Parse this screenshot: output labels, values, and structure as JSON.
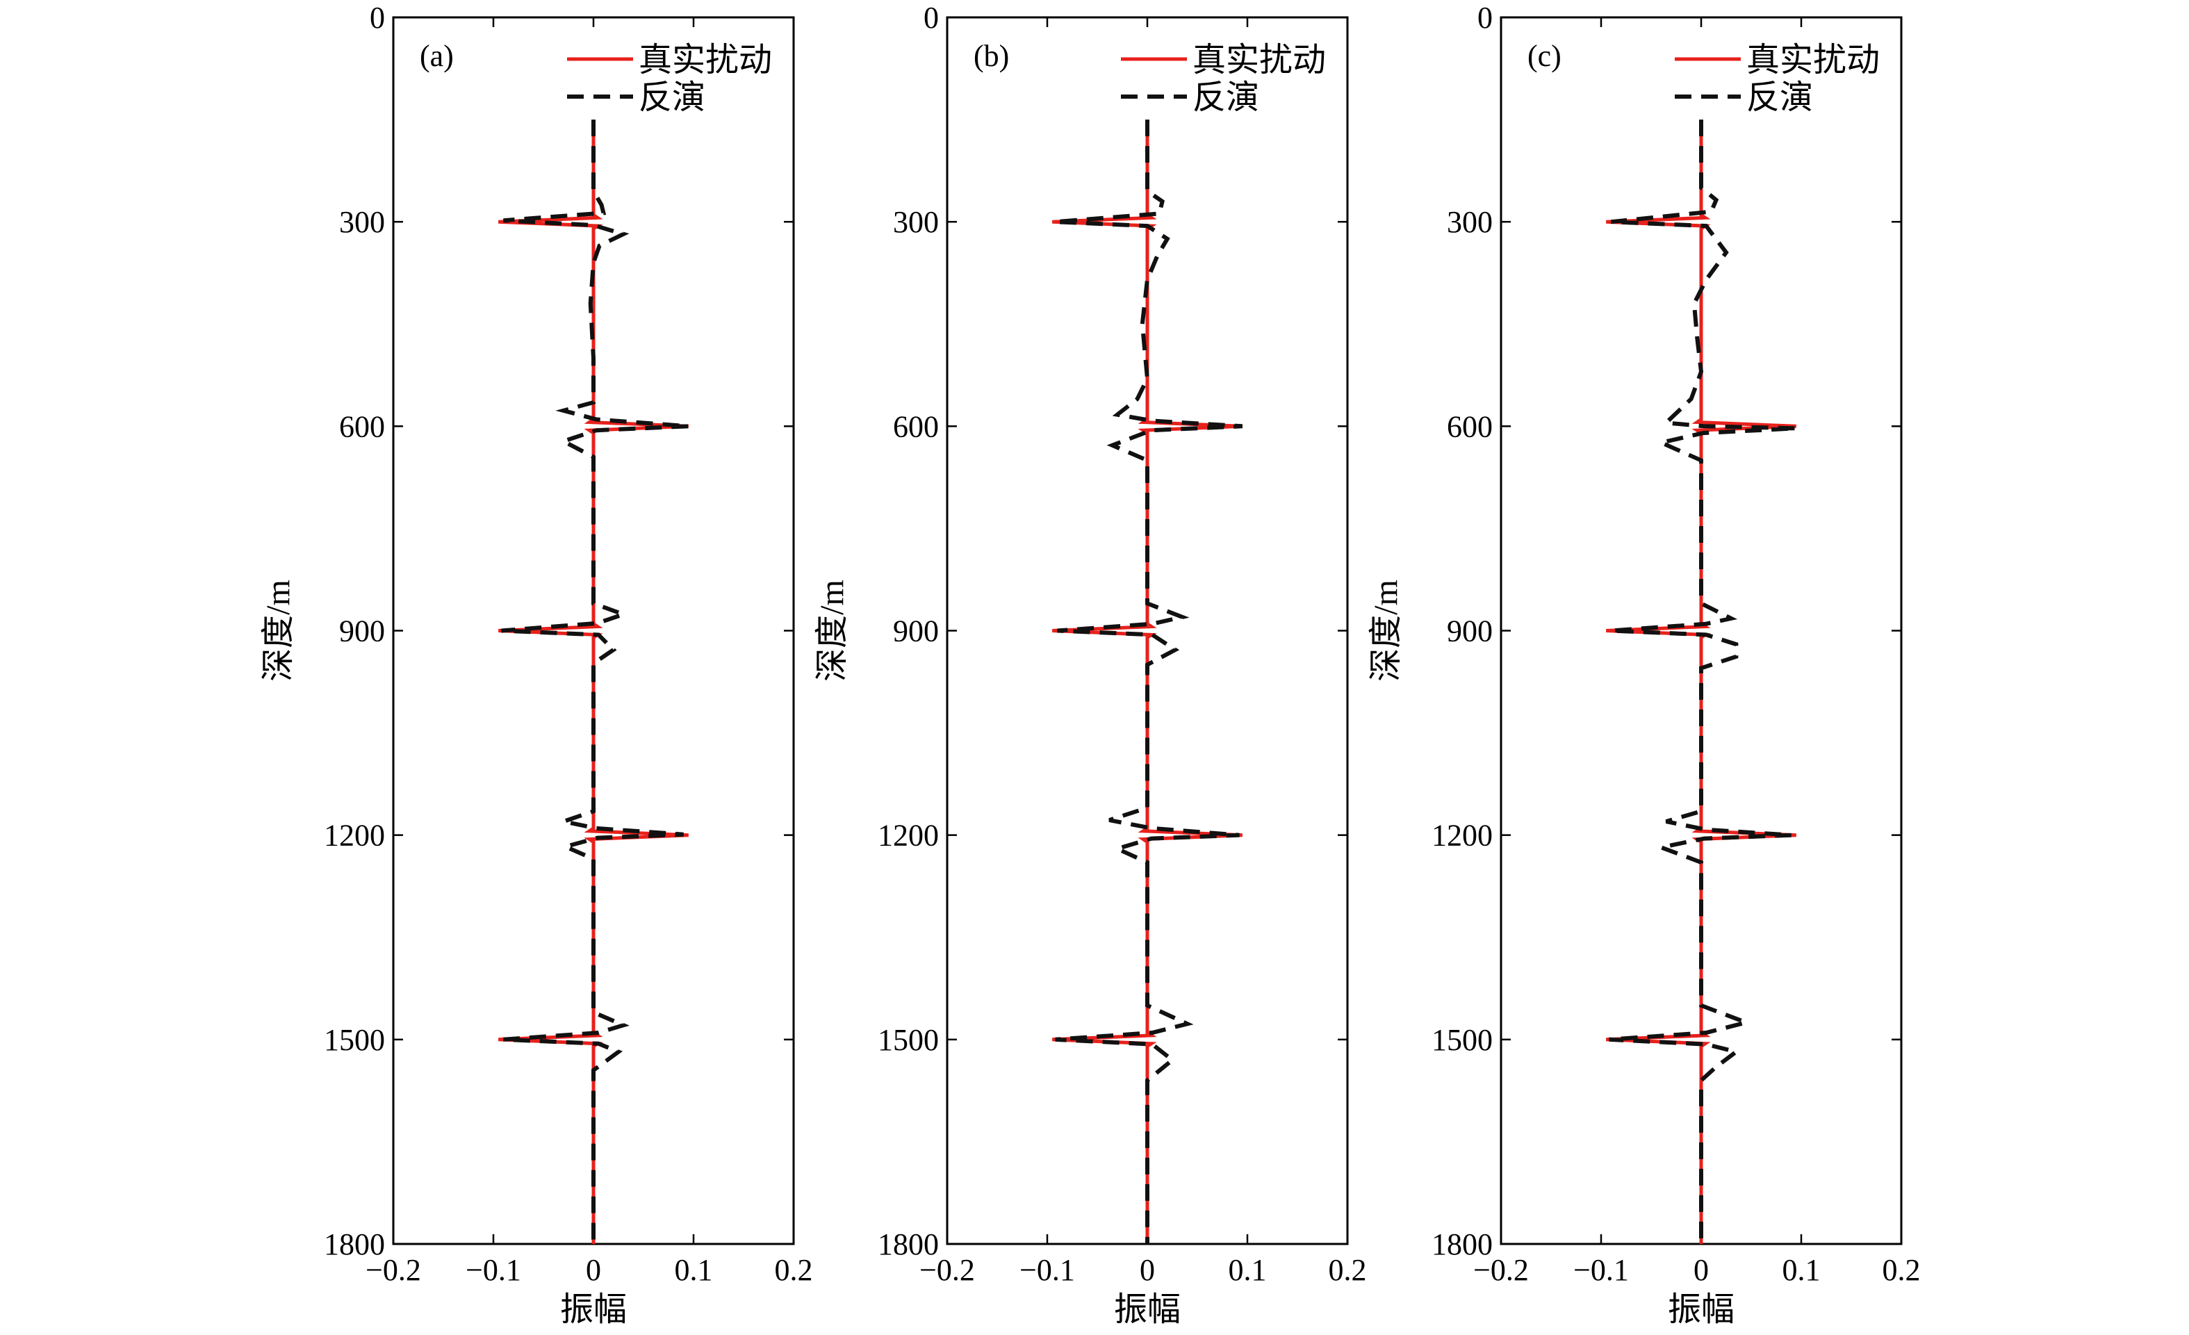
{
  "colors": {
    "true_line": "#e8211c",
    "inverted_line": "#111111",
    "axis": "#000000",
    "background": "#ffffff"
  },
  "chart_data": [
    {
      "type": "line",
      "panel_label": "(a)",
      "xlabel": "振幅",
      "ylabel": "深度/m",
      "xlim": [
        -0.2,
        0.2
      ],
      "ylim": [
        0,
        1800
      ],
      "y_inverted": true,
      "xticks": [
        "−0.2",
        "−0.1",
        "0",
        "0.1",
        "0.2"
      ],
      "yticks": [
        "0",
        "300",
        "600",
        "900",
        "1200",
        "1500",
        "1800"
      ],
      "legend_position": "top-right",
      "series": [
        {
          "name": "真实扰动",
          "style": "solid",
          "points": [
            [
              0,
              150
            ],
            [
              0,
              290
            ],
            [
              0.004,
              294
            ],
            [
              -0.095,
              300
            ],
            [
              0.004,
              306
            ],
            [
              0,
              310
            ],
            [
              0,
              590
            ],
            [
              -0.004,
              594
            ],
            [
              0.095,
              600
            ],
            [
              -0.004,
              606
            ],
            [
              0,
              610
            ],
            [
              0,
              890
            ],
            [
              0.004,
              894
            ],
            [
              -0.095,
              900
            ],
            [
              0.004,
              906
            ],
            [
              0,
              910
            ],
            [
              0,
              1190
            ],
            [
              -0.004,
              1194
            ],
            [
              0.095,
              1200
            ],
            [
              -0.004,
              1206
            ],
            [
              0,
              1210
            ],
            [
              0,
              1490
            ],
            [
              0.004,
              1494
            ],
            [
              -0.095,
              1500
            ],
            [
              0.004,
              1506
            ],
            [
              0,
              1510
            ],
            [
              0,
              1800
            ]
          ]
        },
        {
          "name": "反演",
          "style": "dashed",
          "points": [
            [
              0,
              150
            ],
            [
              0,
              255
            ],
            [
              0.008,
              275
            ],
            [
              0.01,
              287
            ],
            [
              -0.09,
              298
            ],
            [
              0,
              305
            ],
            [
              0.03,
              318
            ],
            [
              0.006,
              335
            ],
            [
              0,
              360
            ],
            [
              -0.003,
              420
            ],
            [
              0,
              500
            ],
            [
              0,
              565
            ],
            [
              -0.03,
              577
            ],
            [
              0.003,
              590
            ],
            [
              0.095,
              600
            ],
            [
              0.003,
              606
            ],
            [
              -0.03,
              622
            ],
            [
              0,
              645
            ],
            [
              0,
              860
            ],
            [
              0.03,
              876
            ],
            [
              0.004,
              889
            ],
            [
              -0.092,
              900
            ],
            [
              0.005,
              906
            ],
            [
              0.02,
              928
            ],
            [
              0,
              948
            ],
            [
              0,
              1165
            ],
            [
              -0.03,
              1180
            ],
            [
              0.003,
              1190
            ],
            [
              0.09,
              1199
            ],
            [
              0.004,
              1204
            ],
            [
              -0.028,
              1217
            ],
            [
              0,
              1235
            ],
            [
              0,
              1460
            ],
            [
              0.03,
              1479
            ],
            [
              0.005,
              1490
            ],
            [
              -0.09,
              1500
            ],
            [
              0.005,
              1506
            ],
            [
              0.025,
              1518
            ],
            [
              0,
              1545
            ],
            [
              0,
              1800
            ]
          ]
        }
      ]
    },
    {
      "type": "line",
      "panel_label": "(b)",
      "xlabel": "振幅",
      "ylabel": "深度/m",
      "xlim": [
        -0.2,
        0.2
      ],
      "ylim": [
        0,
        1800
      ],
      "y_inverted": true,
      "xticks": [
        "−0.2",
        "−0.1",
        "0",
        "0.1",
        "0.2"
      ],
      "yticks": [
        "0",
        "300",
        "600",
        "900",
        "1200",
        "1500",
        "1800"
      ],
      "legend_position": "top-right",
      "series": [
        {
          "name": "真实扰动",
          "style": "solid",
          "points": [
            [
              0,
              150
            ],
            [
              0,
              290
            ],
            [
              0.004,
              294
            ],
            [
              -0.095,
              300
            ],
            [
              0.004,
              306
            ],
            [
              0,
              310
            ],
            [
              0,
              590
            ],
            [
              -0.004,
              594
            ],
            [
              0.095,
              600
            ],
            [
              -0.004,
              606
            ],
            [
              0,
              610
            ],
            [
              0,
              890
            ],
            [
              0.004,
              894
            ],
            [
              -0.095,
              900
            ],
            [
              0.004,
              906
            ],
            [
              0,
              910
            ],
            [
              0,
              1190
            ],
            [
              -0.004,
              1194
            ],
            [
              0.095,
              1200
            ],
            [
              -0.004,
              1206
            ],
            [
              0,
              1210
            ],
            [
              0,
              1490
            ],
            [
              0.004,
              1494
            ],
            [
              -0.095,
              1500
            ],
            [
              0.004,
              1506
            ],
            [
              0,
              1510
            ],
            [
              0,
              1800
            ]
          ]
        },
        {
          "name": "反演",
          "style": "dashed",
          "points": [
            [
              0,
              150
            ],
            [
              0,
              255
            ],
            [
              0.015,
              270
            ],
            [
              0.012,
              288
            ],
            [
              -0.092,
              300
            ],
            [
              0,
              306
            ],
            [
              0.02,
              325
            ],
            [
              0.01,
              350
            ],
            [
              0,
              385
            ],
            [
              -0.005,
              450
            ],
            [
              0,
              530
            ],
            [
              -0.01,
              560
            ],
            [
              -0.03,
              583
            ],
            [
              0.005,
              592
            ],
            [
              0.095,
              600
            ],
            [
              0.004,
              606
            ],
            [
              -0.035,
              628
            ],
            [
              0,
              650
            ],
            [
              0,
              860
            ],
            [
              0.035,
              880
            ],
            [
              0.005,
              890
            ],
            [
              -0.09,
              900
            ],
            [
              0.005,
              906
            ],
            [
              0.028,
              928
            ],
            [
              0,
              950
            ],
            [
              0,
              1160
            ],
            [
              -0.038,
              1178
            ],
            [
              0.005,
              1190
            ],
            [
              0.092,
              1200
            ],
            [
              0.004,
              1205
            ],
            [
              -0.03,
              1220
            ],
            [
              0,
              1240
            ],
            [
              0,
              1450
            ],
            [
              0.04,
              1477
            ],
            [
              0.005,
              1490
            ],
            [
              -0.092,
              1500
            ],
            [
              0.005,
              1507
            ],
            [
              0.025,
              1530
            ],
            [
              0,
              1560
            ],
            [
              0,
              1800
            ]
          ]
        }
      ]
    },
    {
      "type": "line",
      "panel_label": "(c)",
      "xlabel": "振幅",
      "ylabel": "深度/m",
      "xlim": [
        -0.2,
        0.2
      ],
      "ylim": [
        0,
        1800
      ],
      "y_inverted": true,
      "xticks": [
        "−0.2",
        "−0.1",
        "0",
        "0.1",
        "0.2"
      ],
      "yticks": [
        "0",
        "300",
        "600",
        "900",
        "1200",
        "1500",
        "1800"
      ],
      "legend_position": "top-right",
      "series": [
        {
          "name": "真实扰动",
          "style": "solid",
          "points": [
            [
              0,
              150
            ],
            [
              0,
              290
            ],
            [
              0.004,
              294
            ],
            [
              -0.095,
              300
            ],
            [
              0.004,
              306
            ],
            [
              0,
              310
            ],
            [
              0,
              590
            ],
            [
              -0.004,
              594
            ],
            [
              0.095,
              600
            ],
            [
              -0.004,
              606
            ],
            [
              0,
              610
            ],
            [
              0,
              890
            ],
            [
              0.004,
              894
            ],
            [
              -0.095,
              900
            ],
            [
              0.004,
              906
            ],
            [
              0,
              910
            ],
            [
              0,
              1190
            ],
            [
              -0.004,
              1194
            ],
            [
              0.095,
              1200
            ],
            [
              -0.004,
              1206
            ],
            [
              0,
              1210
            ],
            [
              0,
              1490
            ],
            [
              0.004,
              1494
            ],
            [
              -0.095,
              1500
            ],
            [
              0.004,
              1506
            ],
            [
              0,
              1510
            ],
            [
              0,
              1800
            ]
          ]
        },
        {
          "name": "反演",
          "style": "dashed",
          "points": [
            [
              0,
              150
            ],
            [
              0,
              250
            ],
            [
              0.015,
              268
            ],
            [
              0.01,
              285
            ],
            [
              -0.09,
              300
            ],
            [
              0.005,
              306
            ],
            [
              0.025,
              345
            ],
            [
              0.005,
              385
            ],
            [
              -0.007,
              420
            ],
            [
              -0.004,
              470
            ],
            [
              0,
              520
            ],
            [
              -0.01,
              560
            ],
            [
              -0.035,
              595
            ],
            [
              0.003,
              600
            ],
            [
              0.095,
              603
            ],
            [
              0.002,
              610
            ],
            [
              -0.04,
              624
            ],
            [
              0,
              650
            ],
            [
              0,
              860
            ],
            [
              0.03,
              882
            ],
            [
              0.005,
              890
            ],
            [
              -0.09,
              900
            ],
            [
              0.005,
              906
            ],
            [
              0.035,
              920
            ],
            [
              0.035,
              938
            ],
            [
              0,
              955
            ],
            [
              0,
              1165
            ],
            [
              -0.035,
              1180
            ],
            [
              0.005,
              1192
            ],
            [
              0.09,
              1200
            ],
            [
              0.003,
              1205
            ],
            [
              -0.04,
              1218
            ],
            [
              0,
              1240
            ],
            [
              0,
              1450
            ],
            [
              0.045,
              1475
            ],
            [
              0.005,
              1490
            ],
            [
              -0.092,
              1500
            ],
            [
              0.005,
              1507
            ],
            [
              0.035,
              1518
            ],
            [
              0.015,
              1540
            ],
            [
              0,
              1560
            ],
            [
              0,
              1800
            ]
          ]
        }
      ]
    }
  ]
}
